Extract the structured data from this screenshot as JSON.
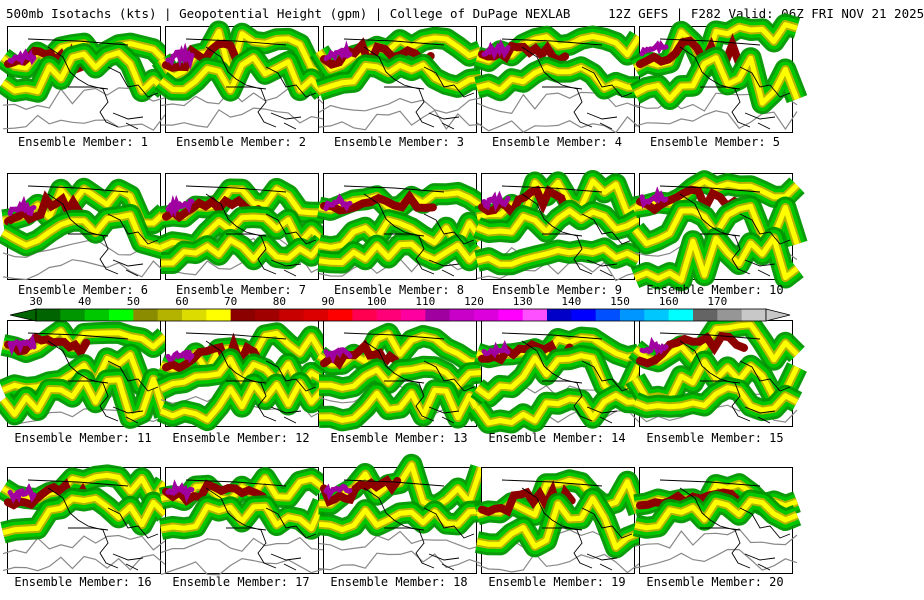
{
  "header": {
    "title": "500mb Isotachs (kts) | Geopotential Height (gpm) | College of DuPage NEXLAB",
    "run_info": "12Z GEFS | F282 Valid: 06Z FRI NOV 21 2025"
  },
  "members": [
    {
      "label": "Ensemble Member: 1"
    },
    {
      "label": "Ensemble Member: 2"
    },
    {
      "label": "Ensemble Member: 3"
    },
    {
      "label": "Ensemble Member: 4"
    },
    {
      "label": "Ensemble Member: 5"
    },
    {
      "label": "Ensemble Member: 6"
    },
    {
      "label": "Ensemble Member: 7"
    },
    {
      "label": "Ensemble Member: 8"
    },
    {
      "label": "Ensemble Member: 9"
    },
    {
      "label": "Ensemble Member: 10"
    },
    {
      "label": "Ensemble Member: 11"
    },
    {
      "label": "Ensemble Member: 12"
    },
    {
      "label": "Ensemble Member: 13"
    },
    {
      "label": "Ensemble Member: 14"
    },
    {
      "label": "Ensemble Member: 15"
    },
    {
      "label": "Ensemble Member: 16"
    },
    {
      "label": "Ensemble Member: 17"
    },
    {
      "label": "Ensemble Member: 18"
    },
    {
      "label": "Ensemble Member: 19"
    },
    {
      "label": "Ensemble Member: 20"
    }
  ],
  "colorbar": {
    "ticks": [
      "30",
      "40",
      "50",
      "60",
      "70",
      "80",
      "90",
      "100",
      "110",
      "120",
      "130",
      "140",
      "150",
      "160",
      "170"
    ],
    "colors": [
      "#006400",
      "#009600",
      "#00c800",
      "#00ff00",
      "#8c8c00",
      "#b4b400",
      "#dcdc00",
      "#ffff00",
      "#8c0000",
      "#a00000",
      "#c80000",
      "#dc0000",
      "#ff0000",
      "#ff0050",
      "#ff0078",
      "#ff00a0",
      "#a000a0",
      "#c800c8",
      "#dc00dc",
      "#ff00ff",
      "#ff50ff",
      "#0000c8",
      "#0000ff",
      "#0050ff",
      "#0096ff",
      "#00c8ff",
      "#00ffff",
      "#646464",
      "#969696",
      "#c8c8c8"
    ]
  },
  "map_colors": {
    "jet_green": "#00c800",
    "jet_darkgreen": "#009600",
    "jet_olive": "#b4b400",
    "jet_yellow": "#ffff00",
    "jet_maroon": "#8c0000",
    "jet_red": "#c80000",
    "jet_purple": "#a000a0",
    "contour_gray": "#888888",
    "coastline": "#000000"
  }
}
